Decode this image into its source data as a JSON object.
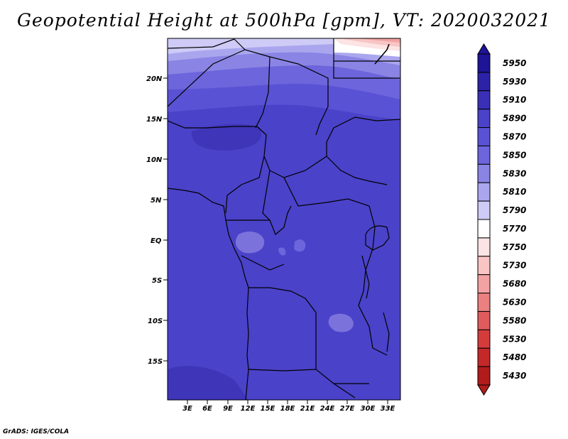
{
  "title": "Geopotential Height at 500hPa [gpm], VT: 2020032021",
  "credit": "GrADS: IGES/COLA",
  "map": {
    "lat_labels": [
      "20N",
      "15N",
      "10N",
      "5N",
      "EQ",
      "5S",
      "10S",
      "15S"
    ],
    "lon_labels": [
      "3E",
      "6E",
      "9E",
      "12E",
      "15E",
      "18E",
      "21E",
      "24E",
      "27E",
      "30E",
      "33E"
    ],
    "region_colors": {
      "dominant": "#4a42c8",
      "high": "#3f35b8",
      "pale_patch": "#7b72dc",
      "warm_corner": "#f3a8a8"
    }
  },
  "colorbar": {
    "levels": [
      "5950",
      "5930",
      "5910",
      "5890",
      "5870",
      "5850",
      "5830",
      "5810",
      "5790",
      "5770",
      "5750",
      "5730",
      "5680",
      "5630",
      "5580",
      "5530",
      "5480",
      "5430"
    ],
    "colors": [
      "#1e1496",
      "#2c22a8",
      "#3a30b8",
      "#4a42c8",
      "#5a52d4",
      "#6c65dc",
      "#8a84e4",
      "#aaa6ee",
      "#cecbf6",
      "#ffffff",
      "#fce4e4",
      "#f8c4c4",
      "#f2a2a2",
      "#ea8080",
      "#e05c5c",
      "#d43c3c",
      "#c42828",
      "#b01c1c"
    ]
  }
}
